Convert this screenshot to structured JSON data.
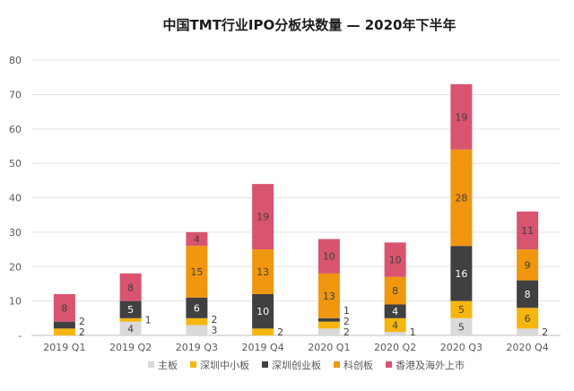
{
  "chart_data": {
    "type": "bar",
    "stacked": true,
    "title": "中国TMT行业IPO分板块数量 — 2020年下半年",
    "xlabel": "",
    "ylabel": "",
    "ylim": [
      0,
      80
    ],
    "yticks": [
      0,
      10,
      20,
      30,
      40,
      50,
      60,
      70,
      80
    ],
    "grid": true,
    "legend_position": "bottom",
    "categories": [
      "2019 Q1",
      "2019 Q2",
      "2019 Q3",
      "2019 Q4",
      "2020 Q1",
      "2020 Q2",
      "2020 Q3",
      "2020 Q4"
    ],
    "series": [
      {
        "name": "主板",
        "color": "#d9d9d9",
        "label_color": "#404040",
        "values": [
          0,
          4,
          3,
          0,
          2,
          1,
          5,
          2
        ]
      },
      {
        "name": "深圳中小板",
        "color": "#f6b60f",
        "label_color": "#404040",
        "values": [
          2,
          1,
          2,
          2,
          2,
          4,
          5,
          6
        ]
      },
      {
        "name": "深圳创业板",
        "color": "#404040",
        "label_color": "#ffffff",
        "values": [
          2,
          5,
          6,
          10,
          1,
          4,
          16,
          8
        ]
      },
      {
        "name": "科创板",
        "color": "#f0960f",
        "label_color": "#404040",
        "values": [
          0,
          0,
          15,
          13,
          13,
          8,
          28,
          9
        ]
      },
      {
        "name": "香港及海外上市",
        "color": "#d9546f",
        "label_color": "#404040",
        "values": [
          8,
          8,
          4,
          19,
          10,
          10,
          19,
          11
        ]
      }
    ]
  }
}
